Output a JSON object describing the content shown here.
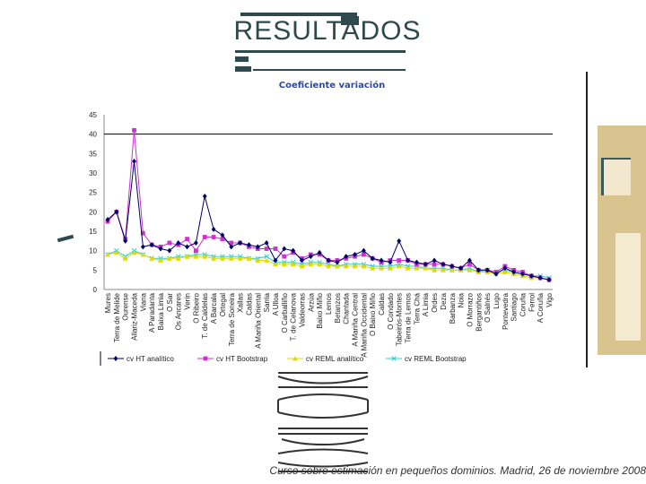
{
  "slide": {
    "title": "RESULTADOS",
    "footer": "Curso sobre estimación en pequeños dominios. Madrid, 26 de noviembre 2008"
  },
  "colors": {
    "title": "#2e4a4c",
    "chart_title": "#2a4aa8",
    "logo_bg": "#d9c38e"
  },
  "chart_data": {
    "type": "line",
    "title": "Coeficiente variación",
    "xlabel": "",
    "ylabel": "",
    "ylim": [
      0,
      45
    ],
    "yticks": [
      0,
      5,
      10,
      15,
      20,
      25,
      30,
      35,
      40,
      45
    ],
    "grid": "single horizontal line at 40",
    "legend_position": "bottom",
    "categories": [
      "Mures",
      "Terra de Melide",
      "Ourense",
      "Allariz-Maceda",
      "Viana",
      "A Paradanta",
      "Baixa Limia",
      "O Sar",
      "Os Ancares",
      "Verín",
      "O Ribeiro",
      "T. de Caldelas",
      "A Barcala",
      "Ortegal",
      "Terra de Soneira",
      "Xallas",
      "Caldas",
      "A Mariña Oriental",
      "Sarria",
      "A Ulloa",
      "O Carballiño",
      "T. de Celanova",
      "Valdeorras",
      "Arzúa",
      "Baixo Miño",
      "Lemos",
      "Betanzos",
      "Chantada",
      "A Mariña Central",
      "A Mariña Occidental",
      "O Baixo Miño",
      "Caldas",
      "O Condado",
      "Tabeirós-Montes",
      "Terra de Lemos",
      "Terra Chá",
      "A Limia",
      "Ordes",
      "Deza",
      "Barbanza",
      "Noia",
      "O Morrazo",
      "Bergantiños",
      "O Salnés",
      "Lugo",
      "Pontevedra",
      "Santiago",
      "Coruña",
      "Ferrol",
      "A Coruña",
      "Vigo"
    ],
    "series": [
      {
        "name": "cv HT analítico",
        "color": "#000066",
        "marker": "diamond",
        "values": [
          18,
          20,
          12.5,
          33,
          11,
          11.5,
          10.5,
          10,
          12,
          11,
          12,
          24,
          15.5,
          14,
          11,
          12,
          11.5,
          11,
          12,
          7.5,
          10.5,
          10,
          7.5,
          8.5,
          9.5,
          7.5,
          7,
          8.5,
          9,
          10,
          8,
          7.5,
          7,
          12.5,
          7.5,
          7,
          6.5,
          7.5,
          6.5,
          6,
          5.5,
          7.5,
          5,
          5,
          4,
          5.5,
          4.5,
          4,
          3.5,
          3,
          2.5
        ]
      },
      {
        "name": "cv HT Bootstrap",
        "color": "#cc33cc",
        "marker": "square",
        "values": [
          17.5,
          20,
          13,
          41,
          14.5,
          11.5,
          11,
          12,
          11.5,
          13,
          10,
          13.5,
          13.5,
          13,
          12,
          12,
          11,
          10.5,
          10.5,
          10.5,
          8.5,
          9.5,
          8,
          9,
          9,
          7.5,
          7.5,
          8,
          8.5,
          9,
          8,
          7,
          7.5,
          7.5,
          7.5,
          6.5,
          6.5,
          6.5,
          6.5,
          6,
          5.5,
          6.5,
          5,
          5,
          4.5,
          6,
          5,
          4.5,
          3.5,
          3,
          2.5
        ]
      },
      {
        "name": "cv REML analítico",
        "color": "#e6d800",
        "marker": "triangle",
        "values": [
          9,
          9.5,
          8,
          9.5,
          9,
          8,
          7.5,
          8,
          8,
          8.5,
          8.5,
          8.5,
          8,
          8,
          8,
          8,
          8,
          7.5,
          7.5,
          6.5,
          6.5,
          6.5,
          6,
          6.5,
          6.5,
          6,
          6,
          6,
          6,
          6,
          5.5,
          5.5,
          5.5,
          6,
          5.5,
          5.5,
          5.5,
          5,
          5,
          5,
          5,
          5,
          4.5,
          4.5,
          4,
          4.5,
          4,
          3.5,
          3,
          3,
          2.5
        ]
      },
      {
        "name": "cv REML Bootstrap",
        "color": "#33cccc",
        "marker": "x",
        "values": [
          9,
          10,
          8.5,
          10,
          9,
          8,
          8,
          8,
          8.5,
          8.5,
          9,
          9,
          8.5,
          8.5,
          8.5,
          8.5,
          8,
          8,
          8.5,
          7,
          7,
          7,
          6.5,
          7,
          7,
          6.5,
          6,
          6.5,
          6.5,
          6.5,
          6,
          6,
          6,
          6.5,
          6,
          6,
          5.5,
          5.5,
          5.5,
          5,
          5,
          5.5,
          4.5,
          5,
          4.5,
          5,
          4.5,
          4,
          3.5,
          3.5,
          3
        ]
      }
    ]
  }
}
